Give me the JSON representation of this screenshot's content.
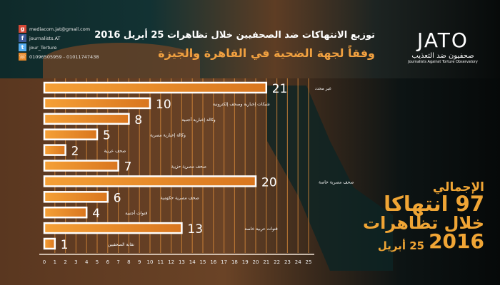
{
  "header": {
    "title_line1": "توزيع الانتهاكات ضد الصحفيين خلال تظاهرات 25 أبريل 2016",
    "title_line2": "وفقاً لجهة الضحية في القاهرة والجيزة"
  },
  "logo": {
    "mark": "JATO",
    "arabic": "صحفيون ضد التعذيب",
    "english": "Journalists Against Torture Observatory"
  },
  "contacts": [
    {
      "icon": "google-plus-icon",
      "text": "mediacom.jat@gmail.com",
      "color": "#d34836"
    },
    {
      "icon": "facebook-icon",
      "text": "journalists.AT",
      "color": "#3b5998"
    },
    {
      "icon": "twitter-icon",
      "text": "jour_Torture",
      "color": "#55acee"
    },
    {
      "icon": "phone-icon",
      "text": "01096505959 - 01011747438",
      "color": "#e8892a"
    }
  ],
  "total": {
    "line1": "الإجمالي",
    "line2": "97 انتهاكا",
    "line3": "خلال تظاهرات",
    "line4": "25 أبريل",
    "line5": "2016"
  },
  "chart_data": {
    "type": "bar",
    "orientation": "horizontal",
    "categories": [
      "غير محدد",
      "شبكات إخبارية وصحف إلكترونية",
      "وكالة إخبارية أجنبية",
      "وكالة إخبارية مصرية",
      "صحف عربية",
      "صحف مصرية حزبية",
      "صحف مصرية خاصة",
      "صحف مصرية حكومية",
      "قنوات أجنبية",
      "قنوات عربية خاصة",
      "نقابة الصحفيين"
    ],
    "values": [
      21,
      10,
      8,
      5,
      2,
      7,
      20,
      6,
      4,
      13,
      1
    ],
    "xlim": [
      0,
      25
    ],
    "xticks": [
      0,
      1,
      2,
      3,
      4,
      5,
      6,
      7,
      8,
      9,
      10,
      11,
      12,
      13,
      14,
      15,
      16,
      17,
      18,
      19,
      20,
      21,
      22,
      23,
      24,
      25
    ],
    "grid": true,
    "bar_color": "#f0952e"
  }
}
